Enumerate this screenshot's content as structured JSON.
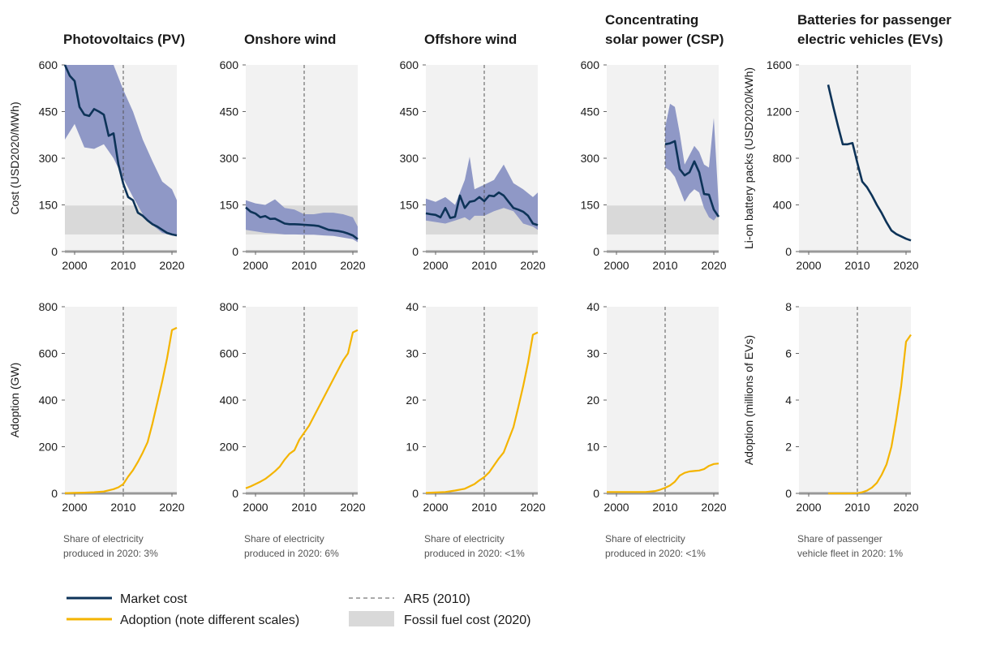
{
  "colors": {
    "market_cost": "#0d3358",
    "band": "#8f98c6",
    "adoption": "#f4b400",
    "fossil": "#d9d9d9",
    "panel_bg": "#f2f2f2",
    "axis": "#999999",
    "ar5": "#555555"
  },
  "legend": {
    "market_cost": "Market cost",
    "adoption": "Adoption (note different scales)",
    "ar5": "AR5 (2010)",
    "fossil": "Fossil fuel cost (2020)"
  },
  "chart_data": [
    {
      "type": "line",
      "id": "pv-cost",
      "title": "Photovoltaics (PV)",
      "ylabel": "Cost (USD2020/MWh)",
      "xlim": [
        1998,
        2021
      ],
      "ylim": [
        0,
        600
      ],
      "xticks": [
        2000,
        2010,
        2020
      ],
      "yticks": [
        0,
        150,
        300,
        450,
        600
      ],
      "ar5_year": 2010,
      "fossil_range": [
        55,
        148
      ],
      "series": [
        {
          "x": [
            1998,
            1999,
            2000,
            2001,
            2002,
            2003,
            2004,
            2005,
            2006,
            2007,
            2008,
            2009,
            2010,
            2011,
            2012,
            2013,
            2014,
            2015,
            2016,
            2017,
            2018,
            2019,
            2020,
            2021
          ],
          "y": [
            600,
            565,
            548,
            465,
            440,
            436,
            458,
            450,
            440,
            372,
            380,
            280,
            218,
            175,
            165,
            125,
            115,
            100,
            88,
            80,
            70,
            60,
            55,
            52
          ]
        }
      ],
      "band": {
        "x": [
          1998,
          2000,
          2002,
          2004,
          2006,
          2008,
          2010,
          2012,
          2014,
          2016,
          2018,
          2020,
          2021
        ],
        "low": [
          360,
          410,
          335,
          330,
          345,
          300,
          235,
          175,
          120,
          85,
          60,
          52,
          50
        ],
        "high": [
          600,
          600,
          600,
          600,
          600,
          600,
          520,
          450,
          360,
          290,
          225,
          200,
          165
        ]
      }
    },
    {
      "type": "line",
      "id": "onshore-cost",
      "title": "Onshore wind",
      "xlim": [
        1998,
        2021
      ],
      "ylim": [
        0,
        600
      ],
      "xticks": [
        2000,
        2010,
        2020
      ],
      "yticks": [
        0,
        150,
        300,
        450,
        600
      ],
      "ar5_year": 2010,
      "fossil_range": [
        55,
        148
      ],
      "series": [
        {
          "x": [
            1998,
            1999,
            2000,
            2001,
            2002,
            2003,
            2004,
            2005,
            2006,
            2007,
            2008,
            2009,
            2010,
            2011,
            2012,
            2013,
            2014,
            2015,
            2016,
            2017,
            2018,
            2019,
            2020,
            2021
          ],
          "y": [
            142,
            128,
            122,
            110,
            114,
            105,
            106,
            98,
            90,
            88,
            88,
            87,
            86,
            85,
            84,
            82,
            76,
            70,
            68,
            66,
            63,
            58,
            52,
            40
          ]
        }
      ],
      "band": {
        "x": [
          1998,
          2000,
          2002,
          2004,
          2006,
          2008,
          2010,
          2012,
          2014,
          2016,
          2018,
          2020,
          2021
        ],
        "low": [
          70,
          65,
          60,
          58,
          55,
          55,
          54,
          54,
          52,
          50,
          45,
          40,
          30
        ],
        "high": [
          165,
          155,
          150,
          168,
          140,
          135,
          120,
          120,
          125,
          125,
          120,
          110,
          80
        ]
      }
    },
    {
      "type": "line",
      "id": "offshore-cost",
      "title": "Offshore wind",
      "xlim": [
        1998,
        2021
      ],
      "ylim": [
        0,
        600
      ],
      "xticks": [
        2000,
        2010,
        2020
      ],
      "yticks": [
        0,
        150,
        300,
        450,
        600
      ],
      "ar5_year": 2010,
      "fossil_range": [
        55,
        148
      ],
      "series": [
        {
          "x": [
            1998,
            1999,
            2000,
            2001,
            2002,
            2003,
            2004,
            2005,
            2006,
            2007,
            2008,
            2009,
            2010,
            2011,
            2012,
            2013,
            2014,
            2015,
            2016,
            2017,
            2018,
            2019,
            2020,
            2021
          ],
          "y": [
            123,
            120,
            118,
            110,
            140,
            108,
            112,
            180,
            140,
            160,
            163,
            175,
            162,
            180,
            178,
            190,
            180,
            160,
            140,
            135,
            128,
            115,
            90,
            85
          ]
        }
      ],
      "band": {
        "x": [
          1998,
          2000,
          2002,
          2004,
          2006,
          2007,
          2008,
          2010,
          2012,
          2014,
          2016,
          2018,
          2020,
          2021
        ],
        "low": [
          100,
          95,
          90,
          100,
          110,
          100,
          115,
          115,
          130,
          140,
          130,
          90,
          80,
          70
        ],
        "high": [
          170,
          160,
          175,
          150,
          230,
          305,
          200,
          215,
          230,
          280,
          220,
          200,
          175,
          190
        ]
      }
    },
    {
      "type": "line",
      "id": "csp-cost",
      "title": "Concentrating solar power (CSP)",
      "xlim": [
        1998,
        2021
      ],
      "ylim": [
        0,
        600
      ],
      "xticks": [
        2000,
        2010,
        2020
      ],
      "yticks": [
        0,
        150,
        300,
        450,
        600
      ],
      "ar5_year": 2010,
      "fossil_range": [
        55,
        148
      ],
      "series": [
        {
          "x": [
            2010,
            2011,
            2012,
            2013,
            2014,
            2015,
            2016,
            2017,
            2018,
            2019,
            2020,
            2021
          ],
          "y": [
            345,
            348,
            355,
            265,
            245,
            255,
            290,
            255,
            185,
            183,
            135,
            112
          ]
        }
      ],
      "band": {
        "x": [
          2010,
          2011,
          2012,
          2013,
          2014,
          2015,
          2016,
          2017,
          2018,
          2019,
          2020,
          2021
        ],
        "low": [
          270,
          260,
          240,
          200,
          160,
          185,
          200,
          190,
          140,
          110,
          100,
          120
        ],
        "high": [
          400,
          475,
          465,
          380,
          280,
          310,
          340,
          320,
          280,
          270,
          430,
          150
        ]
      }
    },
    {
      "type": "line",
      "id": "ev-cost",
      "title": "Batteries for passenger electric vehicles (EVs)",
      "ylabel": "Li-on battery packs (USD2020/kWh)",
      "xlim": [
        1998,
        2021
      ],
      "ylim": [
        0,
        1600
      ],
      "xticks": [
        2000,
        2010,
        2020
      ],
      "yticks": [
        0,
        400,
        800,
        1200,
        1600
      ],
      "ar5_year": 2010,
      "series": [
        {
          "x": [
            2004,
            2005,
            2006,
            2007,
            2008,
            2009,
            2010,
            2011,
            2012,
            2013,
            2014,
            2015,
            2016,
            2017,
            2018,
            2019,
            2020,
            2021
          ],
          "y": [
            1430,
            1250,
            1080,
            920,
            920,
            930,
            760,
            600,
            550,
            480,
            400,
            330,
            250,
            180,
            150,
            130,
            110,
            95
          ]
        }
      ]
    },
    {
      "type": "line",
      "id": "pv-adoption",
      "ylabel": "Adoption (GW)",
      "xlim": [
        1998,
        2021
      ],
      "ylim": [
        0,
        800
      ],
      "xticks": [
        2000,
        2010,
        2020
      ],
      "yticks": [
        0,
        200,
        400,
        600,
        800
      ],
      "ar5_year": 2010,
      "note": "Share of electricity produced in 2020: 3%",
      "series": [
        {
          "x": [
            1998,
            2000,
            2002,
            2004,
            2006,
            2008,
            2009,
            2010,
            2011,
            2012,
            2013,
            2014,
            2015,
            2016,
            2017,
            2018,
            2019,
            2020,
            2021
          ],
          "y": [
            1,
            2,
            3,
            5,
            8,
            18,
            26,
            40,
            72,
            100,
            135,
            175,
            220,
            300,
            390,
            480,
            580,
            700,
            710
          ]
        }
      ]
    },
    {
      "type": "line",
      "id": "onshore-adoption",
      "xlim": [
        1998,
        2021
      ],
      "ylim": [
        0,
        800
      ],
      "xticks": [
        2000,
        2010,
        2020
      ],
      "yticks": [
        0,
        200,
        400,
        600,
        800
      ],
      "ar5_year": 2010,
      "note": "Share of electricity produced in 2020: 6%",
      "series": [
        {
          "x": [
            1998,
            1999,
            2000,
            2001,
            2002,
            2003,
            2004,
            2005,
            2006,
            2007,
            2008,
            2009,
            2010,
            2011,
            2012,
            2013,
            2014,
            2015,
            2016,
            2017,
            2018,
            2019,
            2020,
            2021
          ],
          "y": [
            22,
            30,
            40,
            50,
            62,
            78,
            95,
            115,
            145,
            170,
            185,
            230,
            260,
            290,
            330,
            370,
            410,
            450,
            490,
            530,
            570,
            600,
            690,
            700
          ]
        }
      ]
    },
    {
      "type": "line",
      "id": "offshore-adoption",
      "xlim": [
        1998,
        2021
      ],
      "ylim": [
        0,
        40
      ],
      "xticks": [
        2000,
        2010,
        2020
      ],
      "yticks": [
        0,
        10,
        20,
        30,
        40
      ],
      "ar5_year": 2010,
      "note": "Share of electricity produced in 2020: <1%",
      "series": [
        {
          "x": [
            1998,
            2000,
            2002,
            2004,
            2006,
            2007,
            2008,
            2009,
            2010,
            2011,
            2012,
            2013,
            2014,
            2015,
            2016,
            2017,
            2018,
            2019,
            2020,
            2021
          ],
          "y": [
            0.1,
            0.2,
            0.3,
            0.6,
            1.0,
            1.5,
            2.0,
            2.8,
            3.5,
            4.5,
            6,
            7.5,
            8.8,
            11.5,
            14.2,
            18.5,
            23,
            28,
            34,
            34.5
          ]
        }
      ]
    },
    {
      "type": "line",
      "id": "csp-adoption",
      "xlim": [
        1998,
        2021
      ],
      "ylim": [
        0,
        40
      ],
      "xticks": [
        2000,
        2010,
        2020
      ],
      "yticks": [
        0,
        10,
        20,
        30,
        40
      ],
      "ar5_year": 2010,
      "note": "Share of electricity produced in 2020: <1%",
      "series": [
        {
          "x": [
            1998,
            2000,
            2002,
            2004,
            2006,
            2008,
            2009,
            2010,
            2011,
            2012,
            2013,
            2014,
            2015,
            2016,
            2017,
            2018,
            2019,
            2020,
            2021
          ],
          "y": [
            0.3,
            0.3,
            0.3,
            0.3,
            0.3,
            0.5,
            0.8,
            1.2,
            1.7,
            2.5,
            3.8,
            4.4,
            4.7,
            4.8,
            4.9,
            5.2,
            5.9,
            6.3,
            6.4
          ]
        }
      ]
    },
    {
      "type": "line",
      "id": "ev-adoption",
      "ylabel": "Adoption (millions of EVs)",
      "xlim": [
        1998,
        2021
      ],
      "ylim": [
        0,
        8
      ],
      "xticks": [
        2000,
        2010,
        2020
      ],
      "yticks": [
        0,
        2,
        4,
        6,
        8
      ],
      "ar5_year": 2010,
      "note": "Share of passenger vehicle fleet in 2020: 1%",
      "series": [
        {
          "x": [
            2004,
            2006,
            2008,
            2010,
            2011,
            2012,
            2013,
            2014,
            2015,
            2016,
            2017,
            2018,
            2019,
            2020,
            2021
          ],
          "y": [
            0,
            0,
            0,
            0.01,
            0.05,
            0.12,
            0.25,
            0.45,
            0.8,
            1.25,
            2.0,
            3.2,
            4.6,
            6.5,
            6.8
          ]
        }
      ]
    }
  ]
}
